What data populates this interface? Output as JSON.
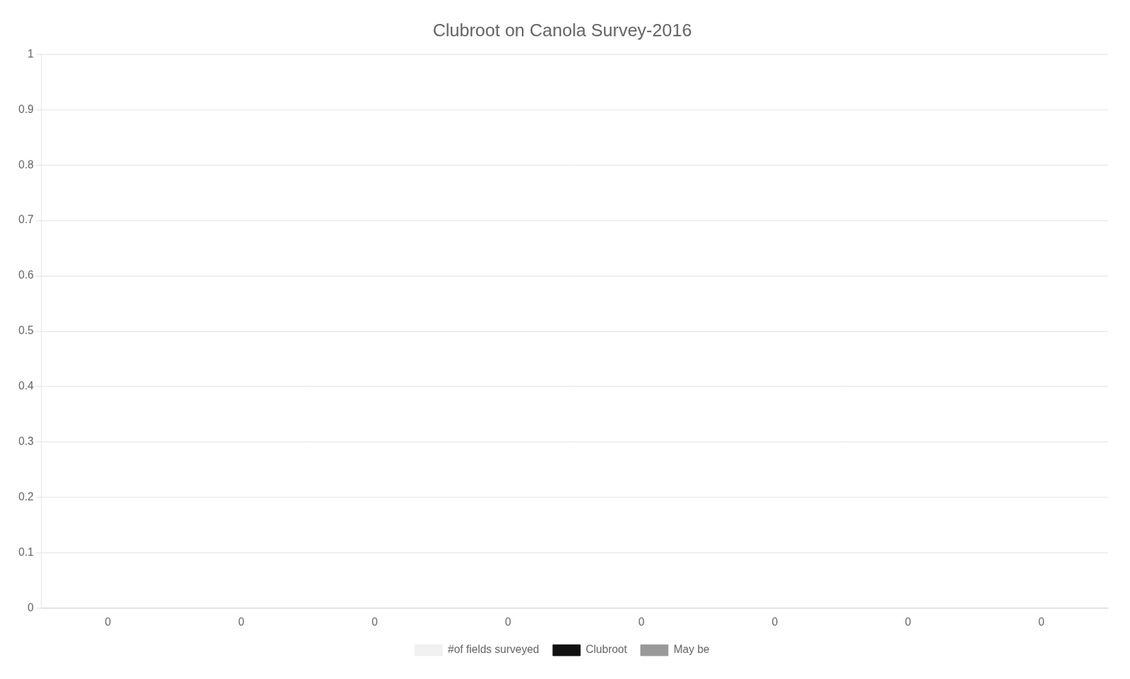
{
  "chart_data": {
    "type": "bar",
    "title": "Clubroot on Canola Survey-2016",
    "categories": [
      "0",
      "0",
      "0",
      "0",
      "0",
      "0",
      "0",
      "0"
    ],
    "series": [
      {
        "name": "#of fields surveyed",
        "color": "#f0f0f0",
        "values": [
          0,
          0,
          0,
          0,
          0,
          0,
          0,
          0
        ]
      },
      {
        "name": "Clubroot",
        "color": "#111111",
        "values": [
          0,
          0,
          0,
          0,
          0,
          0,
          0,
          0
        ]
      },
      {
        "name": "May be",
        "color": "#999999",
        "values": [
          0,
          0,
          0,
          0,
          0,
          0,
          0,
          0
        ]
      }
    ],
    "ylim": [
      0,
      1.0
    ],
    "yticks": [
      0,
      0.1,
      0.2,
      0.3,
      0.4,
      0.5,
      0.6,
      0.7,
      0.8,
      0.9,
      1.0
    ],
    "grid": true,
    "legend": "bottom"
  }
}
